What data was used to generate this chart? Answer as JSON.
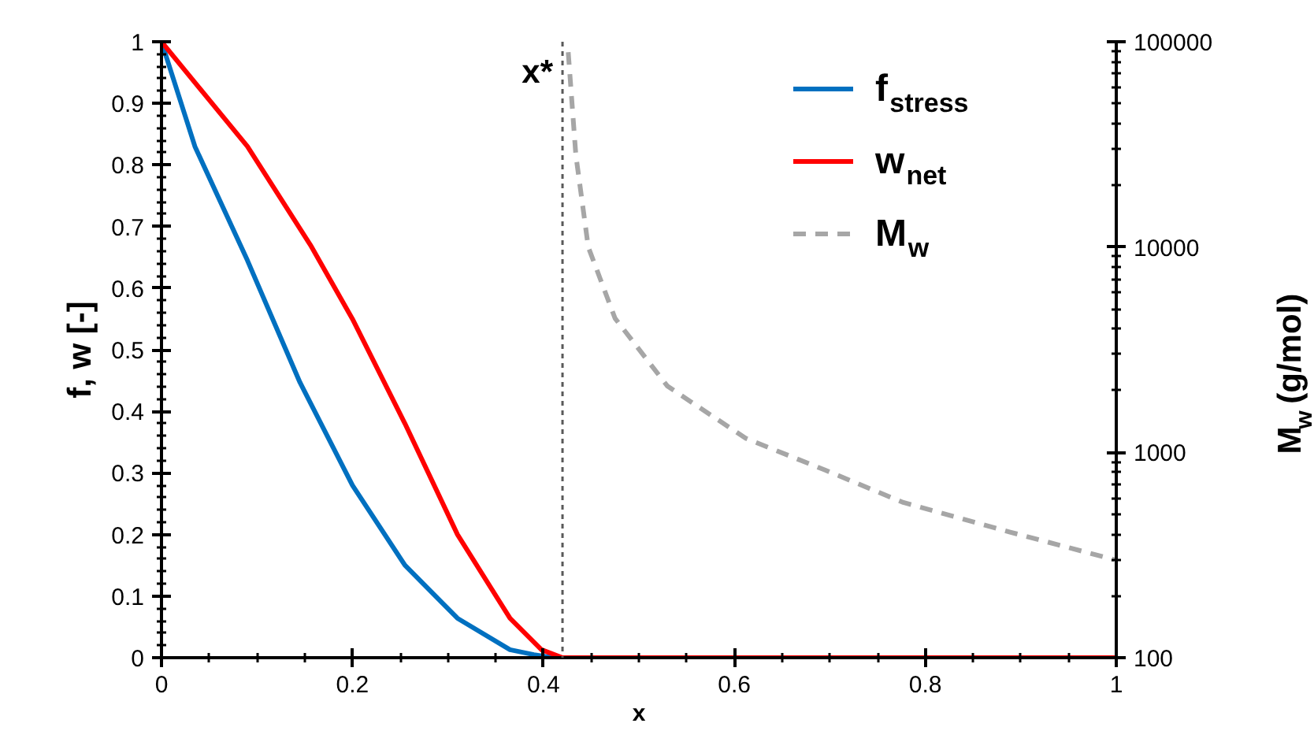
{
  "chart_data": {
    "type": "line",
    "xlabel": "x",
    "ylabel": "f, w [-]",
    "y2label": "M$_{w}$ (g/mol)",
    "xlim": [
      0,
      1
    ],
    "ylim": [
      0,
      1
    ],
    "y2lim": [
      100,
      100000
    ],
    "log": "y2",
    "xticks": [
      0,
      0.2,
      0.4,
      0.6,
      0.8,
      1
    ],
    "yticks": [
      0,
      0.1,
      0.2,
      0.3,
      0.4,
      0.5,
      0.6,
      0.7,
      0.8,
      0.9,
      1
    ],
    "y2ticks": [
      100,
      1000,
      10000,
      100000
    ],
    "grid": false,
    "legend": "top right",
    "series": [
      {
        "name": "f$_{stress}$",
        "color": "#0070c0",
        "line_style": "solid",
        "x": [
          0,
          0.035,
          0.09,
          0.145,
          0.2,
          0.255,
          0.31,
          0.365,
          0.39,
          0.41,
          0.42,
          1
        ],
        "values": [
          1,
          0.83,
          0.645,
          0.447,
          0.28,
          0.15,
          0.064,
          0.013,
          0.005,
          0,
          0,
          0
        ]
      },
      {
        "name": "w$_{net}$",
        "color": "#ff0000",
        "line_style": "solid",
        "x": [
          0,
          0.09,
          0.156,
          0.2,
          0.255,
          0.31,
          0.365,
          0.398,
          0.42,
          1
        ],
        "values": [
          1,
          0.83,
          0.67,
          0.55,
          0.38,
          0.2,
          0.064,
          0.013,
          0,
          0
        ]
      },
      {
        "name": "M$_{w}$",
        "color": "#a6a6a6",
        "line_style": "dashed",
        "axis": "y2",
        "x": [
          0.426,
          0.434,
          0.447,
          0.475,
          0.53,
          0.612,
          0.695,
          0.777,
          0.888,
          0.998
        ],
        "values": [
          89000,
          28000,
          10000,
          4500,
          2100,
          1170,
          820,
          570,
          410,
          300
        ]
      }
    ],
    "ref_lines": [
      {
        "axis": "x",
        "value": 0.42,
        "label": "x*",
        "color": "#595959",
        "line_style": "dotted"
      }
    ]
  }
}
